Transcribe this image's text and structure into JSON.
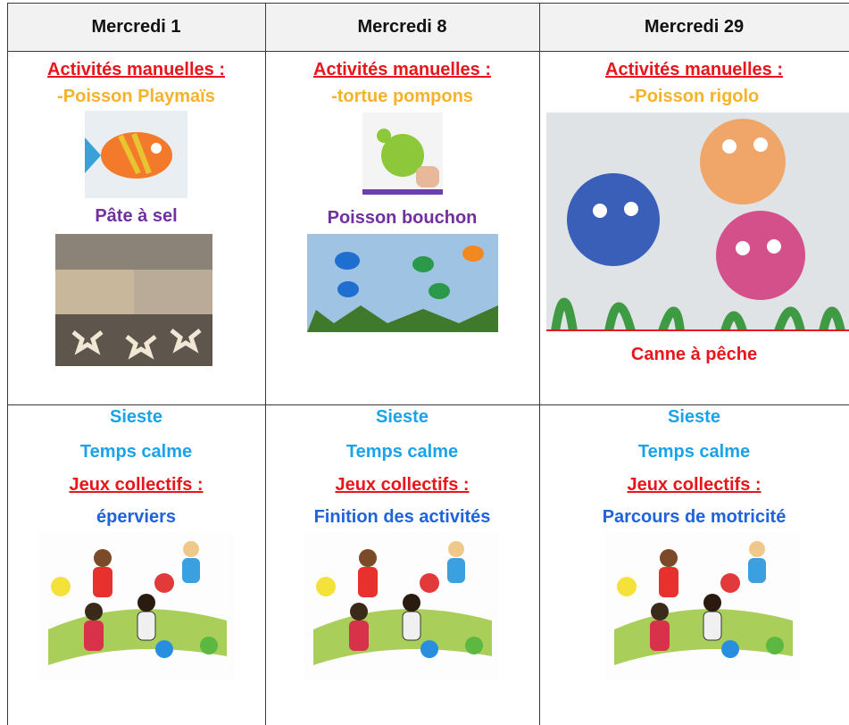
{
  "table": {
    "header": [
      "Mercredi 1",
      "Mercredi 8",
      "Mercredi 29"
    ],
    "rows": [
      [
        [
          "Activités manuelles :",
          "-Poisson Playmaïs",
          "Pâte à sel"
        ],
        [
          "Activités manuelles :",
          "-tortue pompons",
          "Poisson bouchon"
        ],
        [
          "Activités manuelles :",
          "-Poisson rigolo",
          "Canne à pêche"
        ]
      ],
      [
        [
          "Sieste",
          "Temps calme",
          "Jeux collectifs :",
          "éperviers"
        ],
        [
          "Sieste",
          "Temps calme",
          "Jeux collectifs :",
          "Finition des activités"
        ],
        [
          "Sieste",
          "Temps calme",
          "Jeux collectifs :",
          "Parcours de motricité"
        ]
      ]
    ]
  }
}
